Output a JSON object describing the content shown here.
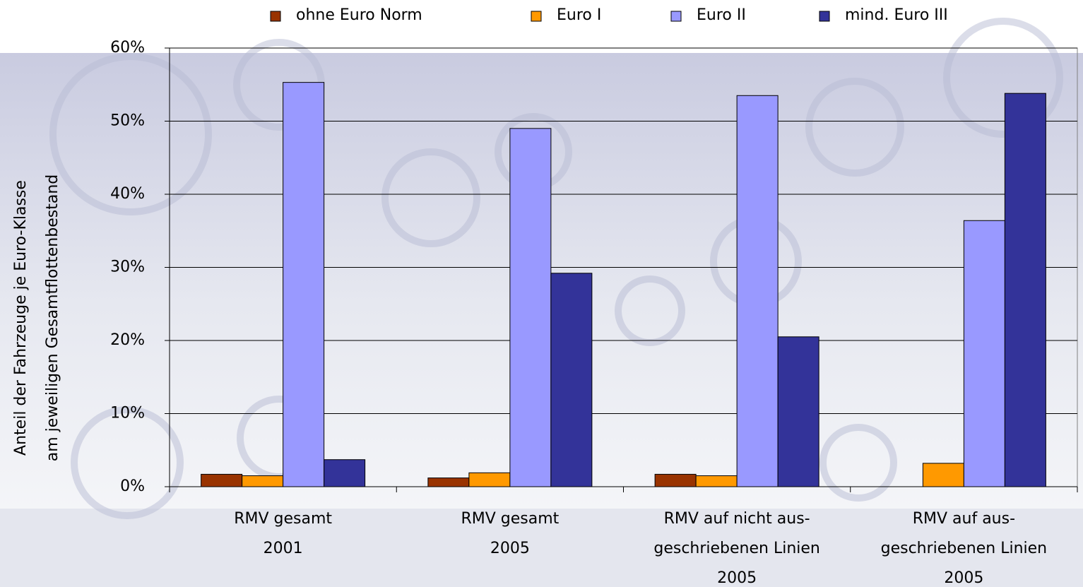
{
  "chart_data": {
    "type": "bar",
    "ylabel": [
      "Anteil der Fahrzeuge je Euro-Klasse",
      "am jeweiligen Gesamtflottenbestand"
    ],
    "categories": [
      [
        "RMV gesamt",
        "2001"
      ],
      [
        "RMV gesamt",
        "2005"
      ],
      [
        "RMV auf nicht aus-",
        "geschriebenen Linien",
        "2005"
      ],
      [
        "RMV auf aus-",
        "geschriebenen Linien",
        "2005"
      ]
    ],
    "series": [
      {
        "name": "ohne Euro Norm",
        "color": "#993300",
        "values": [
          1.7,
          1.2,
          1.7,
          0
        ]
      },
      {
        "name": "Euro I",
        "color": "#FF9900",
        "values": [
          1.5,
          1.9,
          1.5,
          3.2
        ]
      },
      {
        "name": "Euro II",
        "color": "#9999FF",
        "values": [
          55.3,
          49.0,
          53.5,
          36.4
        ]
      },
      {
        "name": "mind. Euro III",
        "color": "#333399",
        "values": [
          3.7,
          29.2,
          20.5,
          53.8
        ]
      }
    ],
    "ylim": [
      0,
      60
    ],
    "yticks": [
      {
        "value": 0,
        "label": "0%"
      },
      {
        "value": 10,
        "label": "10%"
      },
      {
        "value": 20,
        "label": "20%"
      },
      {
        "value": 30,
        "label": "30%"
      },
      {
        "value": 40,
        "label": "40%"
      },
      {
        "value": 50,
        "label": "50%"
      },
      {
        "value": 60,
        "label": "60%"
      }
    ],
    "grid": true
  }
}
